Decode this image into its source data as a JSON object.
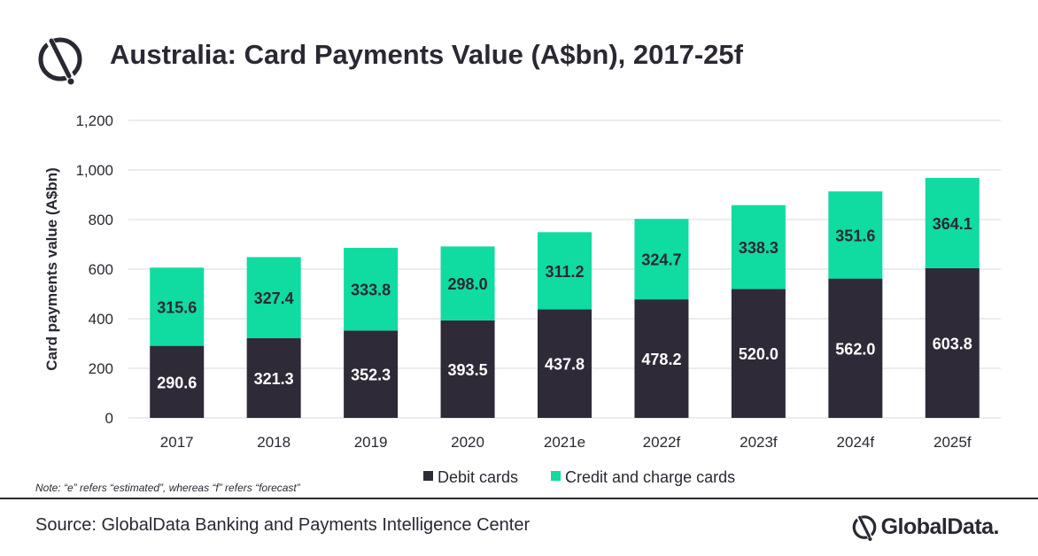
{
  "header": {
    "title": "Australia: Card Payments Value (A$bn), 2017-25f",
    "logo_icon": "globaldata-mark-icon"
  },
  "colors": {
    "debit": "#2e2a38",
    "credit": "#10dba0",
    "text": "#2a2833",
    "grid": "#d9d9d9"
  },
  "chart_data": {
    "type": "bar",
    "stacked": true,
    "categories": [
      "2017",
      "2018",
      "2019",
      "2020",
      "2021e",
      "2022f",
      "2023f",
      "2024f",
      "2025f"
    ],
    "series": [
      {
        "name": "Debit cards",
        "values": [
          290.6,
          321.3,
          352.3,
          393.5,
          437.8,
          478.2,
          520.0,
          562.0,
          603.8
        ]
      },
      {
        "name": "Credit and charge cards",
        "values": [
          315.6,
          327.4,
          333.8,
          298.0,
          311.2,
          324.7,
          338.3,
          351.6,
          364.1
        ]
      }
    ],
    "ylabel": "Card payments value (A$bn)",
    "ylim": [
      0,
      1200
    ],
    "yticks": [
      0,
      200,
      400,
      600,
      800,
      1000,
      1200
    ],
    "ytick_labels": [
      "0",
      "200",
      "400",
      "600",
      "800",
      "1,000",
      "1,200"
    ],
    "grid": true,
    "legend_position": "bottom"
  },
  "note": "Note: “e” refers “estimated”, whereas “f” refers “forecast”",
  "footer": {
    "source": "Source: GlobalData Banking and Payments Intelligence Center",
    "brand": "GlobalData.",
    "brand_icon": "globaldata-mark-icon"
  }
}
